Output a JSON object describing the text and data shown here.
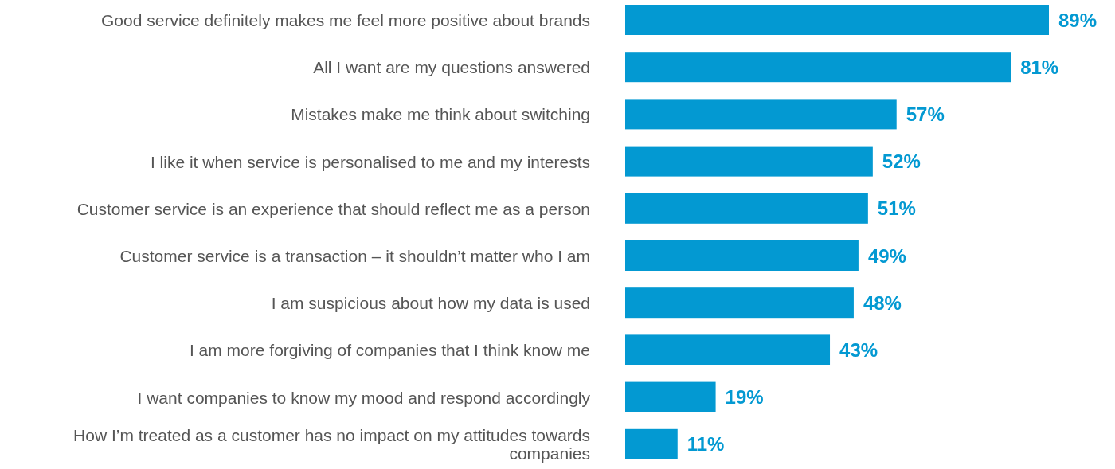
{
  "chart_data": {
    "type": "bar",
    "orientation": "horizontal",
    "categories": [
      "Good service definitely makes me feel more positive about brands",
      "All I want are my questions answered",
      "Mistakes make me think about switching",
      "I like it when service is personalised to me and my interests",
      "Customer service is an experience that should reflect me as a person",
      "Customer service is a transaction – it shouldn’t matter who I am",
      "I am suspicious about how my data is used",
      "I am more forgiving of companies that I think know me",
      "I want companies to know my mood and respond accordingly",
      "How I’m treated as a customer has no impact on my attitudes towards companies"
    ],
    "values": [
      89,
      81,
      57,
      52,
      51,
      49,
      48,
      43,
      19,
      11
    ],
    "value_labels": [
      "89%",
      "81%",
      "57%",
      "52%",
      "51%",
      "49%",
      "48%",
      "43%",
      "19%",
      "11%"
    ],
    "color": "#0399d2"
  }
}
